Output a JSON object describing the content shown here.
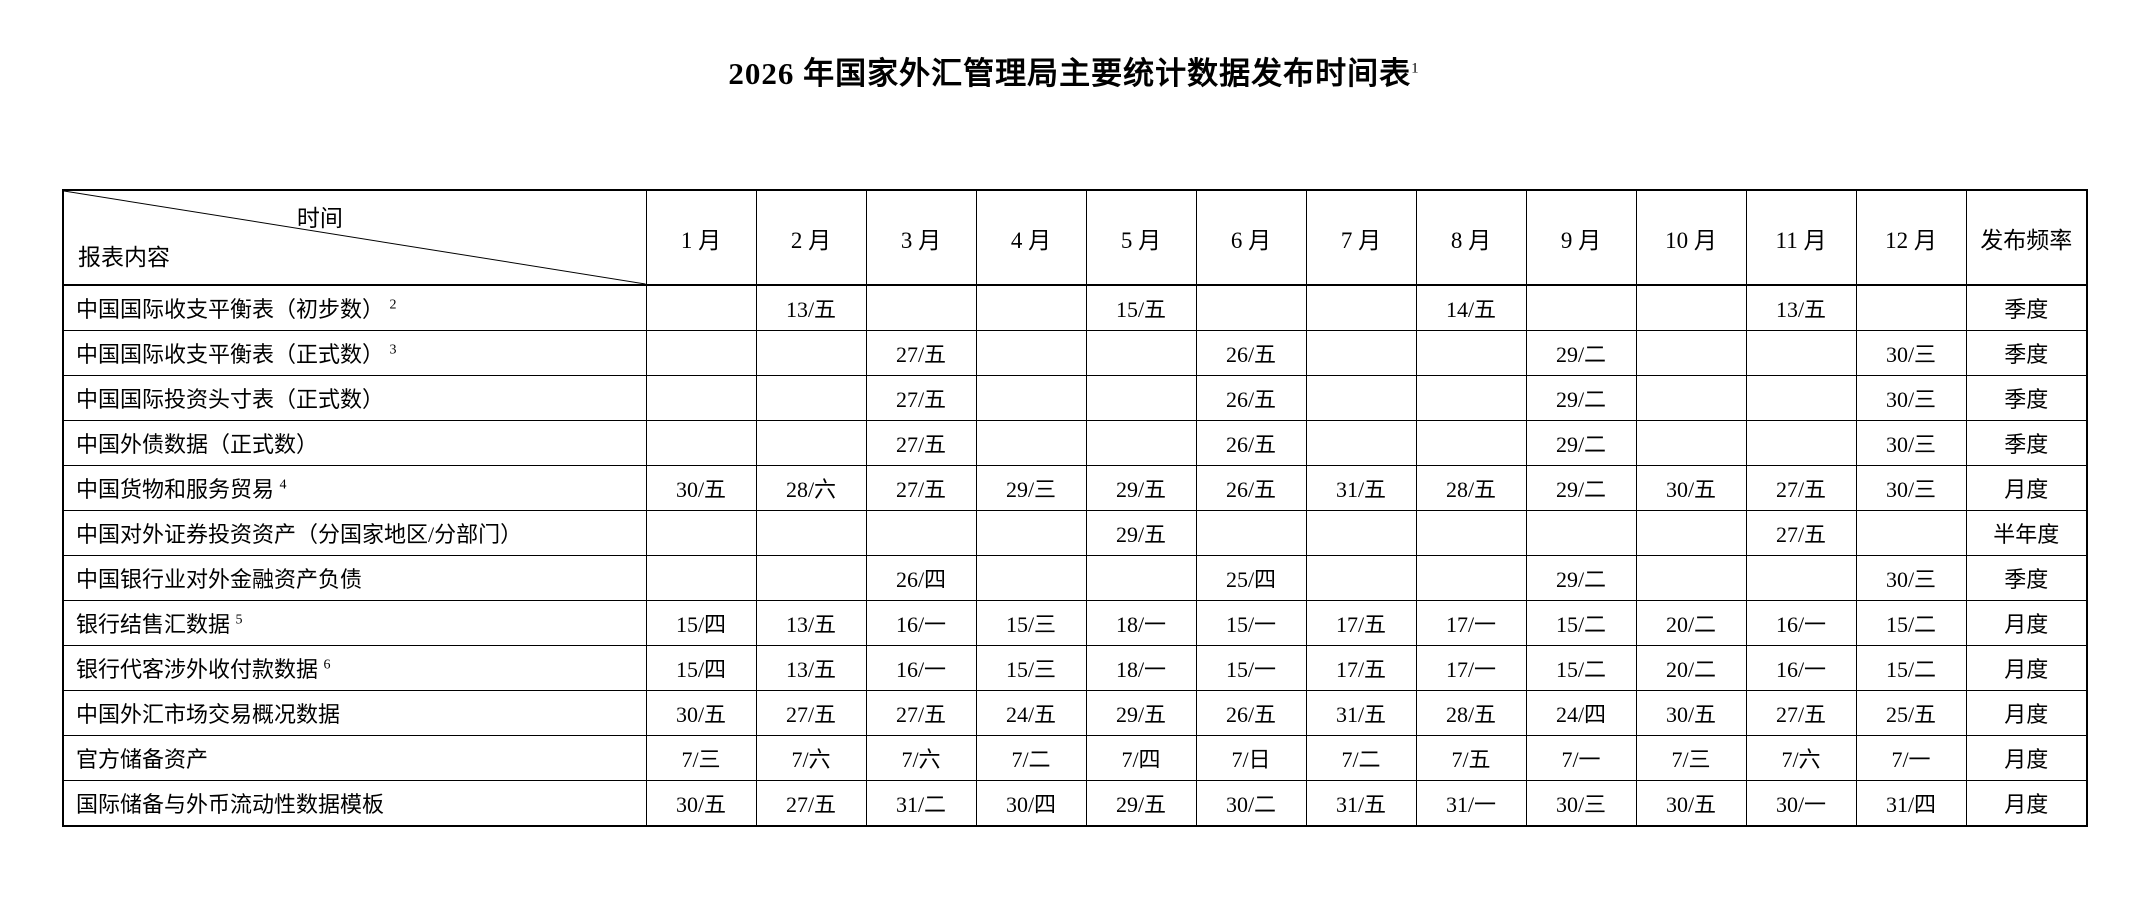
{
  "page": {
    "title": "2026 年国家外汇管理局主要统计数据发布时间表",
    "title_sup": "1"
  },
  "table": {
    "corner": {
      "time_label": "时间",
      "content_label": "报表内容"
    },
    "month_headers": [
      "1 月",
      "2 月",
      "3 月",
      "4 月",
      "5 月",
      "6 月",
      "7 月",
      "8 月",
      "9 月",
      "10 月",
      "11 月",
      "12 月"
    ],
    "frequency_header": "发布频率",
    "rows": [
      {
        "name": "中国国际收支平衡表（初步数）",
        "sup": "2",
        "cells": [
          "",
          "13/五",
          "",
          "",
          "15/五",
          "",
          "",
          "14/五",
          "",
          "",
          "13/五",
          ""
        ],
        "frequency": "季度"
      },
      {
        "name": "中国国际收支平衡表（正式数）",
        "sup": "3",
        "cells": [
          "",
          "",
          "27/五",
          "",
          "",
          "26/五",
          "",
          "",
          "29/二",
          "",
          "",
          "30/三"
        ],
        "frequency": "季度"
      },
      {
        "name": "中国国际投资头寸表（正式数）",
        "sup": "",
        "cells": [
          "",
          "",
          "27/五",
          "",
          "",
          "26/五",
          "",
          "",
          "29/二",
          "",
          "",
          "30/三"
        ],
        "frequency": "季度"
      },
      {
        "name": "中国外债数据（正式数）",
        "sup": "",
        "cells": [
          "",
          "",
          "27/五",
          "",
          "",
          "26/五",
          "",
          "",
          "29/二",
          "",
          "",
          "30/三"
        ],
        "frequency": "季度"
      },
      {
        "name": "中国货物和服务贸易",
        "sup": "4",
        "cells": [
          "30/五",
          "28/六",
          "27/五",
          "29/三",
          "29/五",
          "26/五",
          "31/五",
          "28/五",
          "29/二",
          "30/五",
          "27/五",
          "30/三"
        ],
        "frequency": "月度"
      },
      {
        "name": "中国对外证券投资资产（分国家地区/分部门）",
        "sup": "",
        "cells": [
          "",
          "",
          "",
          "",
          "29/五",
          "",
          "",
          "",
          "",
          "",
          "27/五",
          ""
        ],
        "frequency": "半年度"
      },
      {
        "name": "中国银行业对外金融资产负债",
        "sup": "",
        "cells": [
          "",
          "",
          "26/四",
          "",
          "",
          "25/四",
          "",
          "",
          "29/二",
          "",
          "",
          "30/三"
        ],
        "frequency": "季度"
      },
      {
        "name": "银行结售汇数据",
        "sup": "5",
        "cells": [
          "15/四",
          "13/五",
          "16/一",
          "15/三",
          "18/一",
          "15/一",
          "17/五",
          "17/一",
          "15/二",
          "20/二",
          "16/一",
          "15/二"
        ],
        "frequency": "月度"
      },
      {
        "name": "银行代客涉外收付款数据",
        "sup": "6",
        "cells": [
          "15/四",
          "13/五",
          "16/一",
          "15/三",
          "18/一",
          "15/一",
          "17/五",
          "17/一",
          "15/二",
          "20/二",
          "16/一",
          "15/二"
        ],
        "frequency": "月度"
      },
      {
        "name": "中国外汇市场交易概况数据",
        "sup": "",
        "cells": [
          "30/五",
          "27/五",
          "27/五",
          "24/五",
          "29/五",
          "26/五",
          "31/五",
          "28/五",
          "24/四",
          "30/五",
          "27/五",
          "25/五"
        ],
        "frequency": "月度"
      },
      {
        "name": "官方储备资产",
        "sup": "",
        "cells": [
          "7/三",
          "7/六",
          "7/六",
          "7/二",
          "7/四",
          "7/日",
          "7/二",
          "7/五",
          "7/一",
          "7/三",
          "7/六",
          "7/一"
        ],
        "frequency": "月度"
      },
      {
        "name": "国际储备与外币流动性数据模板",
        "sup": "",
        "cells": [
          "30/五",
          "27/五",
          "31/二",
          "30/四",
          "29/五",
          "30/二",
          "31/五",
          "31/一",
          "30/三",
          "30/五",
          "30/一",
          "31/四"
        ],
        "frequency": "月度"
      }
    ]
  }
}
